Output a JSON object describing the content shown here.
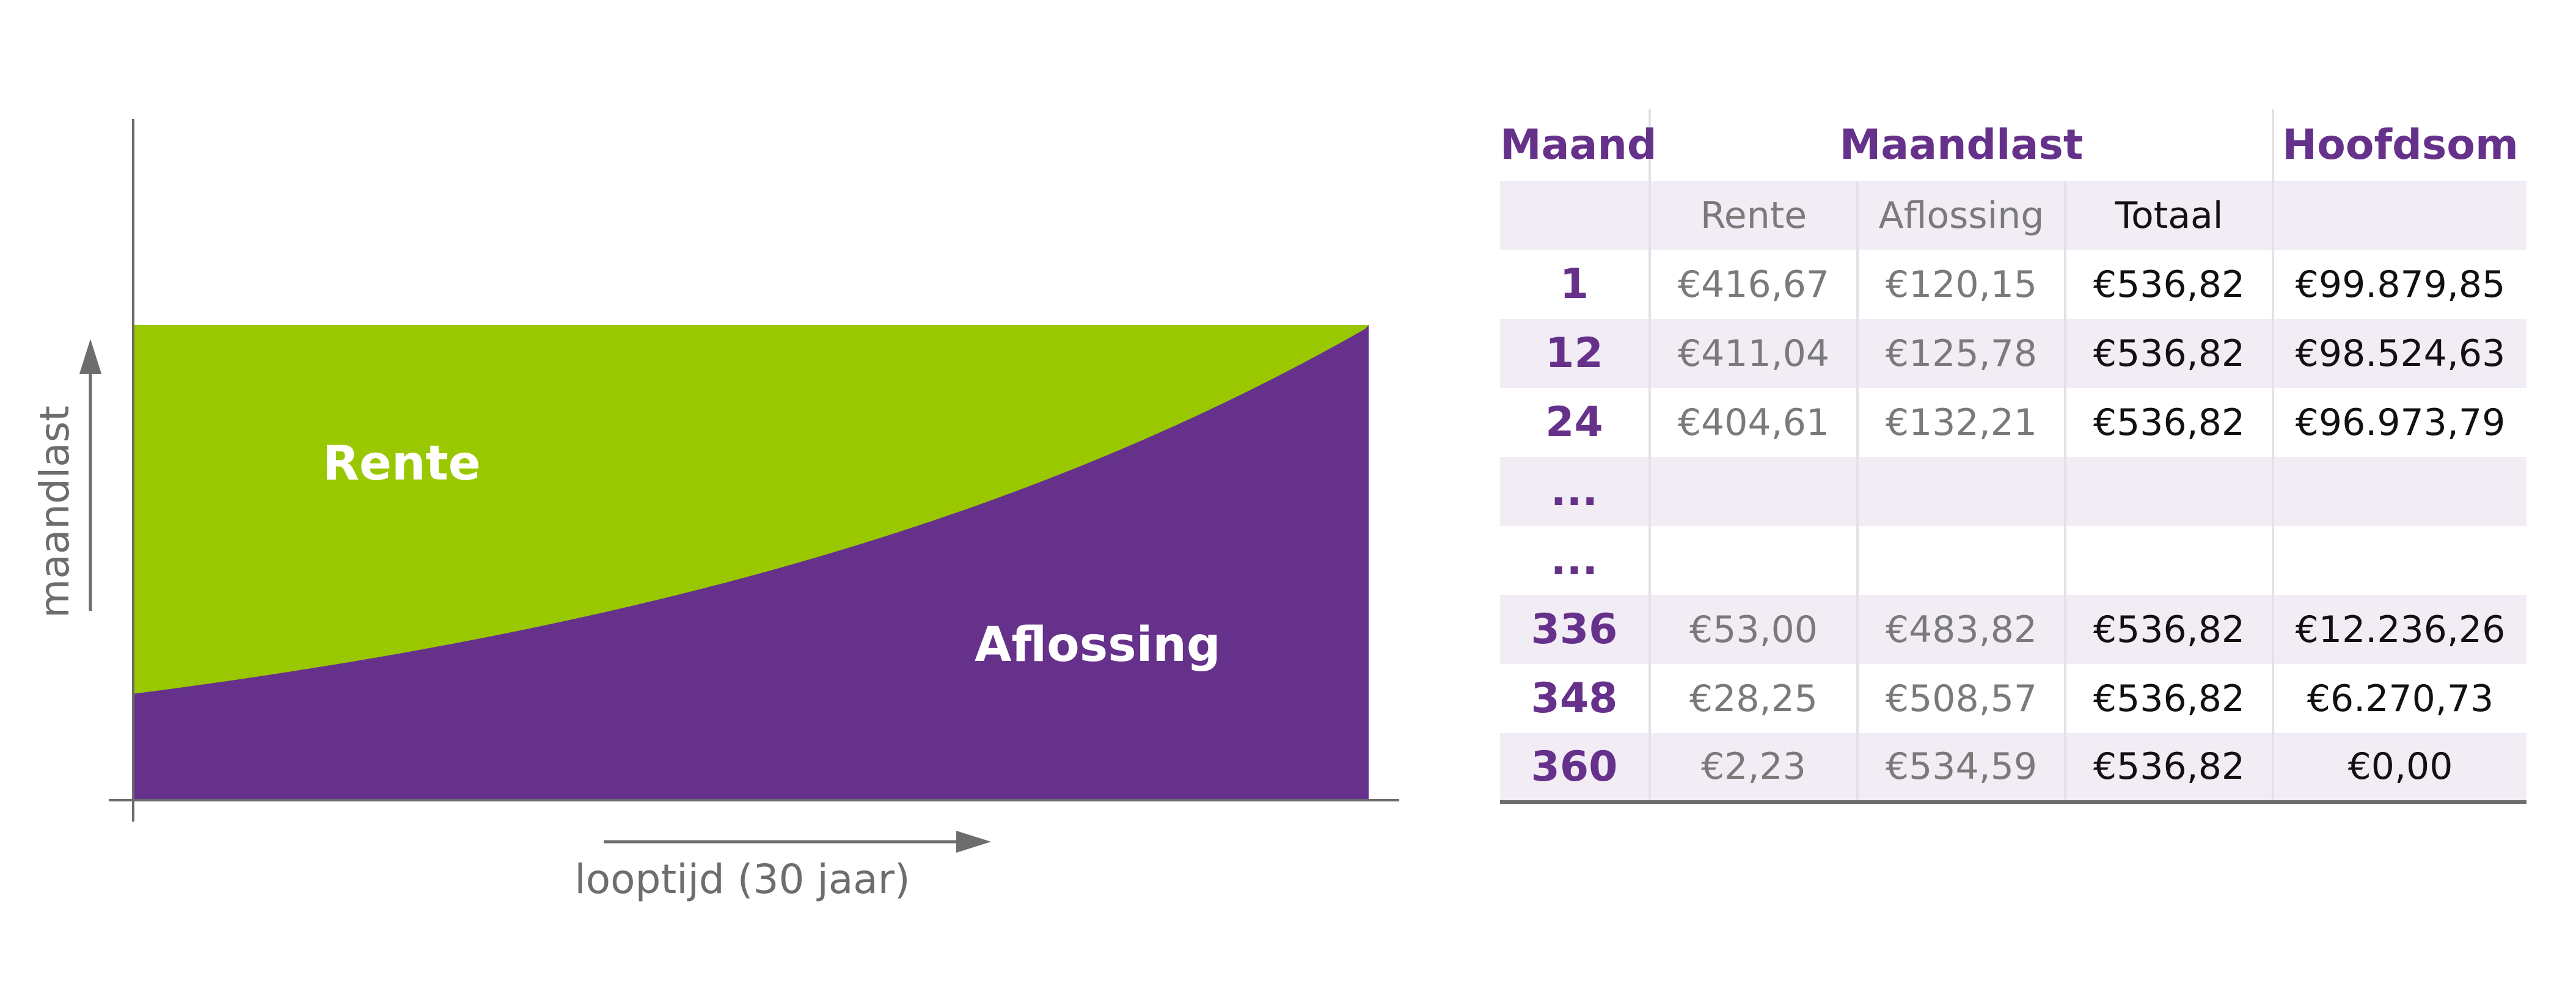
{
  "chart_data": {
    "type": "area",
    "xlabel": "looptijd (30 jaar)",
    "ylabel": "maandlast",
    "series": [
      {
        "name": "Rente",
        "color": "#99c800"
      },
      {
        "name": "Aflossing",
        "color": "#66318b"
      }
    ],
    "x": [
      1,
      12,
      24,
      336,
      348,
      360
    ],
    "rente": [
      416.67,
      411.04,
      404.61,
      53.0,
      28.25,
      2.23
    ],
    "aflossing": [
      120.15,
      125.78,
      132.21,
      483.82,
      508.57,
      534.59
    ],
    "totaal": 536.82,
    "xlim": [
      1,
      360
    ],
    "colors": {
      "axis": "#6d6d6d"
    }
  },
  "table": {
    "headers": {
      "maand": "Maand",
      "maandlast": "Maandlast",
      "hoofdsom": "Hoofdsom"
    },
    "subheaders": {
      "rente": "Rente",
      "aflossing": "Aflossing",
      "totaal": "Totaal"
    },
    "rows": [
      {
        "maand": "1",
        "rente": "€416,67",
        "aflossing": "€120,15",
        "totaal": "€536,82",
        "hoofdsom": "€99.879,85"
      },
      {
        "maand": "12",
        "rente": "€411,04",
        "aflossing": "€125,78",
        "totaal": "€536,82",
        "hoofdsom": "€98.524,63"
      },
      {
        "maand": "24",
        "rente": "€404,61",
        "aflossing": "€132,21",
        "totaal": "€536,82",
        "hoofdsom": "€96.973,79"
      },
      {
        "maand": "...",
        "rente": "",
        "aflossing": "",
        "totaal": "",
        "hoofdsom": ""
      },
      {
        "maand": "...",
        "rente": "",
        "aflossing": "",
        "totaal": "",
        "hoofdsom": ""
      },
      {
        "maand": "336",
        "rente": "€53,00",
        "aflossing": "€483,82",
        "totaal": "€536,82",
        "hoofdsom": "€12.236,26"
      },
      {
        "maand": "348",
        "rente": "€28,25",
        "aflossing": "€508,57",
        "totaal": "€536,82",
        "hoofdsom": "€6.270,73"
      },
      {
        "maand": "360",
        "rente": "€2,23",
        "aflossing": "€534,59",
        "totaal": "€536,82",
        "hoofdsom": "€0,00"
      }
    ]
  }
}
